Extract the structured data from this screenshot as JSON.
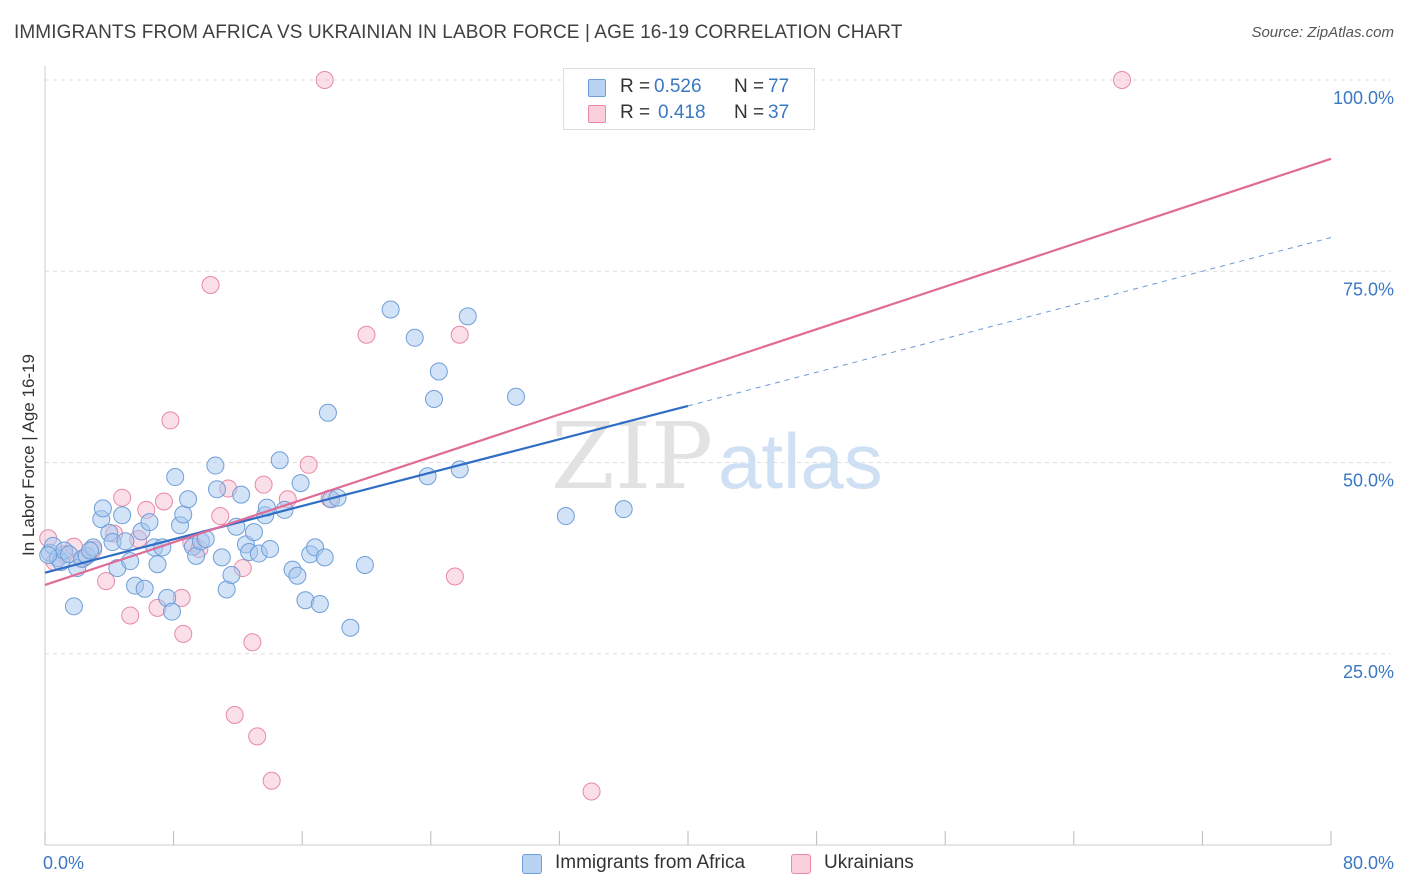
{
  "header": {
    "title": "IMMIGRANTS FROM AFRICA VS UKRAINIAN IN LABOR FORCE | AGE 16-19 CORRELATION CHART",
    "source": "Source: ZipAtlas.com"
  },
  "watermark": {
    "zip": "ZIP",
    "atlas": "atlas"
  },
  "legend": {
    "rows": [
      {
        "r_label": "R =",
        "r_value": "0.526",
        "n_label": "N =",
        "n_value": "77"
      },
      {
        "r_label": "R =",
        "r_value": "0.418",
        "n_label": "N =",
        "n_value": "37"
      }
    ]
  },
  "bottom_legend": {
    "items": [
      "Immigrants from Africa",
      "Ukrainians"
    ]
  },
  "colors": {
    "blue_fill": "#a8c8f0",
    "blue_stroke": "#6f9ed8",
    "blue_line": "#2f6ec4",
    "pink_fill": "#f7b8cc",
    "pink_stroke": "#e889a6",
    "pink_line": "#e06b97",
    "tick_text": "#3b78c4",
    "grid": "#dddddd"
  },
  "chart_data": {
    "type": "scatter",
    "title": "IMMIGRANTS FROM AFRICA VS UKRAINIAN IN LABOR FORCE | AGE 16-19 CORRELATION CHART",
    "xlabel": "",
    "ylabel": "In Labor Force | Age 16-19",
    "xlim": [
      0,
      80
    ],
    "ylim": [
      0,
      102
    ],
    "x_tick_labels": [
      "0.0%",
      "80.0%"
    ],
    "y_ticks": [
      25,
      50,
      75,
      100
    ],
    "y_tick_labels": [
      "25.0%",
      "50.0%",
      "75.0%",
      "100.0%"
    ],
    "grid": true,
    "legend_position": "top-center",
    "series": [
      {
        "name": "Immigrants from Africa",
        "r": 0.526,
        "n": 77,
        "trend": {
          "x0": 0,
          "y0": 35.6,
          "x1": 40,
          "y1": 57.4,
          "dashed_to_x": 80,
          "dashed_to_y": 79.4
        },
        "points": [
          [
            0.3,
            38.2
          ],
          [
            0.5,
            39.1
          ],
          [
            0.8,
            37.5
          ],
          [
            1.0,
            37.0
          ],
          [
            1.2,
            38.5
          ],
          [
            1.5,
            38.0
          ],
          [
            1.8,
            31.2
          ],
          [
            2.0,
            36.2
          ],
          [
            2.3,
            37.4
          ],
          [
            2.6,
            37.8
          ],
          [
            3.0,
            38.9
          ],
          [
            3.5,
            42.6
          ],
          [
            3.6,
            44.0
          ],
          [
            4.0,
            40.8
          ],
          [
            4.2,
            39.6
          ],
          [
            4.5,
            36.2
          ],
          [
            4.8,
            43.1
          ],
          [
            5.0,
            39.7
          ],
          [
            5.3,
            37.1
          ],
          [
            5.6,
            33.9
          ],
          [
            6.0,
            41.0
          ],
          [
            6.2,
            33.5
          ],
          [
            6.5,
            42.2
          ],
          [
            6.8,
            38.9
          ],
          [
            7.0,
            36.7
          ],
          [
            7.3,
            38.9
          ],
          [
            7.6,
            32.3
          ],
          [
            7.9,
            30.5
          ],
          [
            8.1,
            48.1
          ],
          [
            8.4,
            41.8
          ],
          [
            8.6,
            43.2
          ],
          [
            8.9,
            45.2
          ],
          [
            9.2,
            39.0
          ],
          [
            9.4,
            37.8
          ],
          [
            9.7,
            39.7
          ],
          [
            10.0,
            40.0
          ],
          [
            10.6,
            49.6
          ],
          [
            10.7,
            46.5
          ],
          [
            11.0,
            37.6
          ],
          [
            11.3,
            33.4
          ],
          [
            11.6,
            35.3
          ],
          [
            11.9,
            41.6
          ],
          [
            12.2,
            45.8
          ],
          [
            12.5,
            39.3
          ],
          [
            12.7,
            38.3
          ],
          [
            13.0,
            40.9
          ],
          [
            13.3,
            38.1
          ],
          [
            13.7,
            43.1
          ],
          [
            14.0,
            38.7
          ],
          [
            13.8,
            44.1
          ],
          [
            14.6,
            50.3
          ],
          [
            14.9,
            43.8
          ],
          [
            15.4,
            36.0
          ],
          [
            15.7,
            35.2
          ],
          [
            15.9,
            47.3
          ],
          [
            16.2,
            32.0
          ],
          [
            16.5,
            38.0
          ],
          [
            16.8,
            38.9
          ],
          [
            17.1,
            31.5
          ],
          [
            17.4,
            37.6
          ],
          [
            17.6,
            56.5
          ],
          [
            17.8,
            45.2
          ],
          [
            18.2,
            45.4
          ],
          [
            19.0,
            28.4
          ],
          [
            19.9,
            36.6
          ],
          [
            21.5,
            70.0
          ],
          [
            23.0,
            66.3
          ],
          [
            23.8,
            48.2
          ],
          [
            24.2,
            58.3
          ],
          [
            24.5,
            61.9
          ],
          [
            25.8,
            49.1
          ],
          [
            26.3,
            69.1
          ],
          [
            29.3,
            58.6
          ],
          [
            32.4,
            43.0
          ],
          [
            36.0,
            43.9
          ],
          [
            0.2,
            37.9
          ],
          [
            2.8,
            38.5
          ]
        ]
      },
      {
        "name": "Ukrainians",
        "r": 0.418,
        "n": 37,
        "trend": {
          "x0": 0,
          "y0": 34.0,
          "x1": 80,
          "y1": 89.7
        },
        "points": [
          [
            0.2,
            40.1
          ],
          [
            0.6,
            37.0
          ],
          [
            1.2,
            38.0
          ],
          [
            1.8,
            39.0
          ],
          [
            2.4,
            37.5
          ],
          [
            3.0,
            38.6
          ],
          [
            3.8,
            34.5
          ],
          [
            4.3,
            40.7
          ],
          [
            4.8,
            45.4
          ],
          [
            5.3,
            30.0
          ],
          [
            5.8,
            40.0
          ],
          [
            6.3,
            43.8
          ],
          [
            7.0,
            31.0
          ],
          [
            7.4,
            44.9
          ],
          [
            7.8,
            55.5
          ],
          [
            8.5,
            32.3
          ],
          [
            8.6,
            27.6
          ],
          [
            9.1,
            39.5
          ],
          [
            9.6,
            38.7
          ],
          [
            10.3,
            73.2
          ],
          [
            10.9,
            43.0
          ],
          [
            11.4,
            46.6
          ],
          [
            11.8,
            17.0
          ],
          [
            12.3,
            36.2
          ],
          [
            12.9,
            26.5
          ],
          [
            13.2,
            14.2
          ],
          [
            13.6,
            47.1
          ],
          [
            14.1,
            8.4
          ],
          [
            15.1,
            45.2
          ],
          [
            16.4,
            49.7
          ],
          [
            17.7,
            45.3
          ],
          [
            17.4,
            100.0
          ],
          [
            20.0,
            66.7
          ],
          [
            25.5,
            35.1
          ],
          [
            25.8,
            66.7
          ],
          [
            34.0,
            7.0
          ],
          [
            67.0,
            100.0
          ]
        ]
      }
    ]
  }
}
